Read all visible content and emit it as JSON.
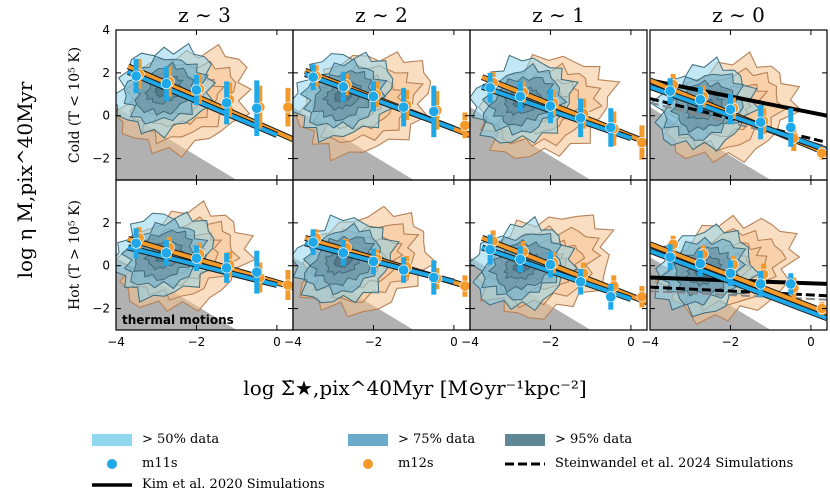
{
  "chart_data": {
    "type": "scatter",
    "title": "",
    "column_titles": [
      "z ∼ 3",
      "z ∼ 2",
      "z ∼ 1",
      "z ∼ 0"
    ],
    "row_labels": [
      "Cold (T < 10⁵ K)",
      "Hot (T > 10⁵ K)"
    ],
    "xlabel": "log Σ̇★,pix^40Myr [M⊙yr⁻¹kpc⁻²]",
    "ylabel": "log η M,pix^40Myr",
    "xlim": [
      -4,
      0.4
    ],
    "ylim": [
      -3,
      4
    ],
    "x_ticks": [
      -4,
      -2,
      0
    ],
    "x_tick_labels": [
      "−4",
      "−2",
      "0"
    ],
    "y_ticks": [
      -2,
      0,
      2,
      4
    ],
    "y_tick_labels": [
      "−2",
      "0",
      "2",
      "4"
    ],
    "annotation": "thermal motions",
    "thermal_region": {
      "x": [
        -4,
        -1
      ],
      "y_upper": [
        0.4,
        -3
      ]
    },
    "colors": {
      "m11s": "#1fa8e8",
      "m12s": "#f39a2b",
      "contour_50": "#8fd6ef",
      "contour_75": "#6aabcb",
      "contour_95": "#5f8798",
      "m12s_contour": "#f6c28f",
      "thermal_gray": "#a8a8a8",
      "line_black": "#000000"
    },
    "panels": [
      [
        {
          "m11s": {
            "x": [
              -3.5,
              -2.75,
              -2,
              -1.25,
              -0.5
            ],
            "y": [
              1.85,
              1.5,
              1.2,
              0.6,
              0.35
            ],
            "err": [
              0.8,
              0.8,
              0.7,
              1.0,
              1.3
            ]
          },
          "m12s": {
            "x": [
              -3.5,
              -2.75,
              -2,
              -1.25,
              -0.5,
              0.2
            ],
            "y": [
              1.95,
              1.6,
              1.25,
              0.75,
              0.4,
              0.4
            ],
            "err": [
              0.7,
              0.7,
              0.7,
              0.8,
              1.0,
              0.9
            ]
          },
          "m11s_fit": {
            "x": [
              -3.7,
              0
            ],
            "y": [
              2.05,
              -0.9
            ]
          },
          "m12s_fit": {
            "x": [
              -3.7,
              0.4
            ],
            "y": [
              2.3,
              -1.1
            ]
          }
        },
        {
          "m11s": {
            "x": [
              -3.5,
              -2.75,
              -2,
              -1.25,
              -0.5
            ],
            "y": [
              1.8,
              1.35,
              0.9,
              0.4,
              0.2
            ],
            "err": [
              0.6,
              0.7,
              0.7,
              0.9,
              1.2
            ]
          },
          "m12s": {
            "x": [
              -3.5,
              -2.75,
              -2,
              -1.25,
              -0.5,
              0.2
            ],
            "y": [
              1.85,
              1.45,
              1.0,
              0.5,
              0.25,
              -0.45
            ],
            "err": [
              0.5,
              0.5,
              0.6,
              0.7,
              0.9,
              0.6
            ]
          },
          "m11s_fit": {
            "x": [
              -3.7,
              0
            ],
            "y": [
              1.95,
              -0.6
            ]
          },
          "m12s_fit": {
            "x": [
              -3.7,
              0.4
            ],
            "y": [
              2.1,
              -0.9
            ]
          }
        },
        {
          "m11s": {
            "x": [
              -3.5,
              -2.75,
              -2,
              -1.25,
              -0.5
            ],
            "y": [
              1.3,
              0.9,
              0.45,
              -0.1,
              -0.55
            ],
            "err": [
              0.7,
              0.7,
              0.8,
              0.9,
              0.9
            ]
          },
          "m12s": {
            "x": [
              -3.5,
              -2.75,
              -2,
              -1.25,
              -0.5,
              0.2
            ],
            "y": [
              1.55,
              1.1,
              0.6,
              0.1,
              -0.6,
              -1.25
            ],
            "err": [
              0.5,
              0.5,
              0.6,
              0.7,
              0.8,
              0.8
            ]
          },
          "m11s_fit": {
            "x": [
              -3.7,
              0
            ],
            "y": [
              1.35,
              -1.05
            ]
          },
          "m12s_fit": {
            "x": [
              -3.7,
              0.4
            ],
            "y": [
              1.8,
              -1.25
            ]
          }
        },
        {
          "m11s": {
            "x": [
              -3.5,
              -2.75,
              -2,
              -1.25,
              -0.5
            ],
            "y": [
              1.15,
              0.75,
              0.3,
              -0.3,
              -0.55
            ],
            "err": [
              0.6,
              0.6,
              0.7,
              0.8,
              0.9
            ]
          },
          "m12s": {
            "x": [
              -3.5,
              -2.75,
              -2,
              -1.25,
              -0.5,
              0.2
            ],
            "y": [
              1.45,
              0.9,
              0.35,
              -0.25,
              -1.05,
              -1.75
            ],
            "err": [
              0.5,
              0.5,
              0.5,
              0.6,
              0.6,
              0.3
            ]
          },
          "m11s_fit": {
            "x": [
              -4,
              0.4
            ],
            "y": [
              1.35,
              -1.6
            ]
          },
          "m12s_fit": {
            "x": [
              -4,
              0.4
            ],
            "y": [
              1.65,
              -1.75
            ]
          },
          "kim2020": {
            "x": [
              -4,
              0.4
            ],
            "y": [
              1.65,
              0.0
            ]
          },
          "steinwandel2024": {
            "x": [
              -4,
              0.4
            ],
            "y": [
              0.8,
              -1.25
            ]
          }
        }
      ],
      [
        {
          "m11s": {
            "x": [
              -3.5,
              -2.75,
              -2,
              -1.25,
              -0.5
            ],
            "y": [
              1.05,
              0.6,
              0.35,
              -0.1,
              -0.3
            ],
            "err": [
              0.7,
              0.6,
              0.6,
              0.7,
              1.0
            ]
          },
          "m12s": {
            "x": [
              -3.5,
              -2.75,
              -2,
              -1.25,
              -0.5,
              0.2
            ],
            "y": [
              1.3,
              0.85,
              0.55,
              0.05,
              -0.55,
              -0.9
            ],
            "err": [
              0.5,
              0.5,
              0.5,
              0.6,
              0.7,
              0.7
            ]
          },
          "m11s_fit": {
            "x": [
              -3.7,
              0
            ],
            "y": [
              0.85,
              -0.9
            ]
          },
          "m12s_fit": {
            "x": [
              -3.7,
              0.4
            ],
            "y": [
              1.25,
              -1.0
            ]
          }
        },
        {
          "m11s": {
            "x": [
              -3.5,
              -2.75,
              -2,
              -1.25,
              -0.5
            ],
            "y": [
              1.1,
              0.6,
              0.2,
              -0.2,
              -0.55
            ],
            "err": [
              0.6,
              0.6,
              0.6,
              0.6,
              0.8
            ]
          },
          "m12s": {
            "x": [
              -3.5,
              -2.75,
              -2,
              -1.25,
              -0.5,
              0.2
            ],
            "y": [
              1.3,
              0.85,
              0.35,
              -0.05,
              -0.6,
              -0.95
            ],
            "err": [
              0.4,
              0.4,
              0.4,
              0.5,
              0.5,
              0.5
            ]
          },
          "m11s_fit": {
            "x": [
              -3.7,
              0
            ],
            "y": [
              1.05,
              -0.75
            ]
          },
          "m12s_fit": {
            "x": [
              -3.7,
              0.4
            ],
            "y": [
              1.3,
              -1.0
            ]
          }
        },
        {
          "m11s": {
            "x": [
              -3.5,
              -2.75,
              -2,
              -1.25,
              -0.5
            ],
            "y": [
              0.75,
              0.3,
              0.05,
              -0.75,
              -1.45
            ],
            "err": [
              0.7,
              0.6,
              0.6,
              0.6,
              0.6
            ]
          },
          "m12s": {
            "x": [
              -3.5,
              -2.75,
              -2,
              -1.25,
              -0.5,
              0.2
            ],
            "y": [
              1.15,
              0.65,
              0.15,
              -0.35,
              -0.95,
              -1.45
            ],
            "err": [
              0.5,
              0.5,
              0.5,
              0.5,
              0.5,
              0.5
            ]
          },
          "m11s_fit": {
            "x": [
              -3.7,
              0
            ],
            "y": [
              0.85,
              -1.55
            ]
          },
          "m12s_fit": {
            "x": [
              -3.7,
              0.4
            ],
            "y": [
              1.3,
              -1.7
            ]
          }
        },
        {
          "m11s": {
            "x": [
              -3.5,
              -2.75,
              -2,
              -1.25,
              -0.5
            ],
            "y": [
              0.4,
              0.1,
              -0.35,
              -0.85,
              -0.85
            ],
            "err": [
              0.6,
              0.6,
              0.6,
              0.6,
              0.5
            ]
          },
          "m12s": {
            "x": [
              -3.5,
              -2.75,
              -2,
              -1.25,
              -0.5,
              0.2
            ],
            "y": [
              1.0,
              0.55,
              0.05,
              -0.4,
              -1.05,
              -2.0
            ],
            "err": [
              0.4,
              0.4,
              0.4,
              0.5,
              0.5,
              0.3
            ]
          },
          "m11s_fit": {
            "x": [
              -4,
              0.4
            ],
            "y": [
              0.7,
              -2.45
            ]
          },
          "m12s_fit": {
            "x": [
              -4,
              0.4
            ],
            "y": [
              1.0,
              -2.2
            ]
          },
          "kim2020": {
            "x": [
              -4,
              0.4
            ],
            "y": [
              -0.55,
              -0.85
            ]
          },
          "steinwandel2024": {
            "x": [
              -4,
              0.4
            ],
            "y": [
              -1.0,
              -1.4
            ]
          }
        }
      ]
    ]
  },
  "legend": {
    "items": [
      {
        "key": "contour_50",
        "label": "> 50% data",
        "kind": "patch"
      },
      {
        "key": "contour_75",
        "label": "> 75% data",
        "kind": "patch"
      },
      {
        "key": "contour_95",
        "label": "> 95% data",
        "kind": "patch"
      },
      {
        "key": "m11s",
        "label": "m11s",
        "kind": "dot"
      },
      {
        "key": "m12s",
        "label": "m12s",
        "kind": "dot"
      },
      {
        "key": "steinwandel2024",
        "label": "Steinwandel et al. 2024 Simulations",
        "kind": "dashed"
      },
      {
        "key": "kim2020",
        "label": "Kim et al. 2020 Simulations",
        "kind": "solid"
      }
    ]
  }
}
